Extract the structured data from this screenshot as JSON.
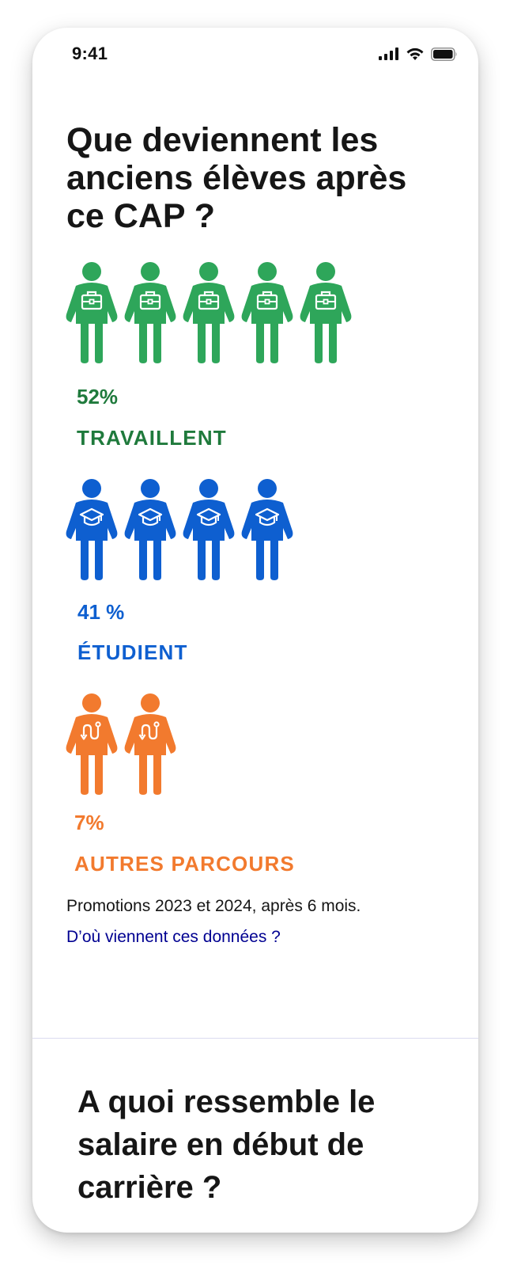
{
  "status_bar": {
    "time": "9:41"
  },
  "section1": {
    "title": "Que deviennent les anciens élèves après ce CAP ?",
    "groups": [
      {
        "key": "travaillent",
        "percent": "52%",
        "label": "TRAVAILLENT",
        "icon_count": 5,
        "color": "#2ea65a",
        "text_color": "#1f7a3c",
        "icon": "briefcase-icon"
      },
      {
        "key": "etudient",
        "percent": "41 %",
        "label": "ÉTUDIENT",
        "icon_count": 4,
        "color": "#0e5fd0",
        "text_color": "#0e5fd0",
        "icon": "graduation-cap-icon"
      },
      {
        "key": "autres",
        "percent": "7%",
        "label": "AUTRES PARCOURS",
        "icon_count": 2,
        "color": "#f27a2e",
        "text_color": "#f27a2e",
        "icon": "route-icon"
      }
    ],
    "source_text": "Promotions 2023 et 2024, après 6 mois.",
    "source_link": "D’où viennent ces données ?"
  },
  "section2": {
    "title": "A quoi ressemble le salaire en début de carrière ?"
  }
}
